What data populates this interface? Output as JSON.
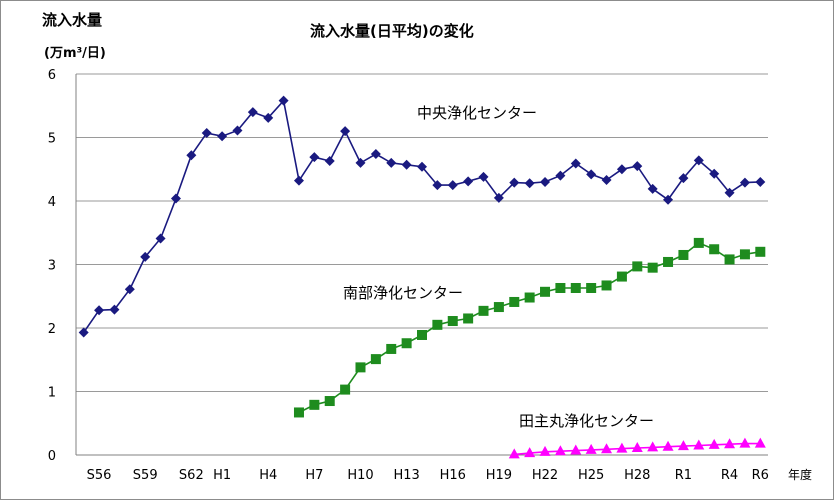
{
  "chart_data": {
    "type": "line",
    "title": "流入水量(日平均)の変化",
    "ylabel": "流入水量",
    "yunit": "(万m³/日)",
    "xlabel": "年度",
    "ylim": [
      0,
      6
    ],
    "yticks": [
      "0",
      "1",
      "2",
      "3",
      "4",
      "5",
      "6"
    ],
    "grid": true,
    "x_start_index": 0,
    "x_count": 45,
    "xtick_labels": [
      {
        "i": 1,
        "label": "S56"
      },
      {
        "i": 4,
        "label": "S59"
      },
      {
        "i": 7,
        "label": "S62"
      },
      {
        "i": 9,
        "label": "H1"
      },
      {
        "i": 12,
        "label": "H4"
      },
      {
        "i": 15,
        "label": "H7"
      },
      {
        "i": 18,
        "label": "H10"
      },
      {
        "i": 21,
        "label": "H13"
      },
      {
        "i": 24,
        "label": "H16"
      },
      {
        "i": 27,
        "label": "H19"
      },
      {
        "i": 30,
        "label": "H22"
      },
      {
        "i": 33,
        "label": "H25"
      },
      {
        "i": 36,
        "label": "H28"
      },
      {
        "i": 39,
        "label": "R1"
      },
      {
        "i": 42,
        "label": "R4"
      },
      {
        "i": 44,
        "label": "R6"
      }
    ],
    "series": [
      {
        "name": "中央浄化センター",
        "color": "#1a1a80",
        "marker": "diamond",
        "start": 0,
        "values": [
          1.93,
          2.28,
          2.29,
          2.61,
          3.12,
          3.41,
          4.04,
          4.72,
          5.07,
          5.02,
          5.11,
          5.4,
          5.31,
          5.58,
          4.32,
          4.69,
          4.63,
          5.1,
          4.6,
          4.74,
          4.6,
          4.57,
          4.54,
          4.25,
          4.25,
          4.31,
          4.38,
          4.05,
          4.29,
          4.28,
          4.3,
          4.4,
          4.59,
          4.42,
          4.33,
          4.5,
          4.55,
          4.19,
          4.02,
          4.36,
          4.64,
          4.43,
          4.13,
          4.29,
          4.3
        ]
      },
      {
        "name": "南部浄化センター",
        "color": "#1e8c1e",
        "marker": "square",
        "start": 14,
        "values": [
          0.67,
          0.79,
          0.85,
          1.03,
          1.38,
          1.51,
          1.67,
          1.76,
          1.89,
          2.05,
          2.11,
          2.15,
          2.27,
          2.33,
          2.41,
          2.48,
          2.57,
          2.63,
          2.63,
          2.63,
          2.67,
          2.81,
          2.97,
          2.95,
          3.04,
          3.15,
          3.34,
          3.24,
          3.08,
          3.16,
          3.2
        ]
      },
      {
        "name": "田主丸浄化センター",
        "color": "#ff00ff",
        "marker": "triangle",
        "start": 28,
        "values": [
          0.01,
          0.03,
          0.05,
          0.06,
          0.07,
          0.08,
          0.09,
          0.1,
          0.11,
          0.12,
          0.13,
          0.14,
          0.15,
          0.16,
          0.17,
          0.18,
          0.18
        ]
      }
    ]
  }
}
